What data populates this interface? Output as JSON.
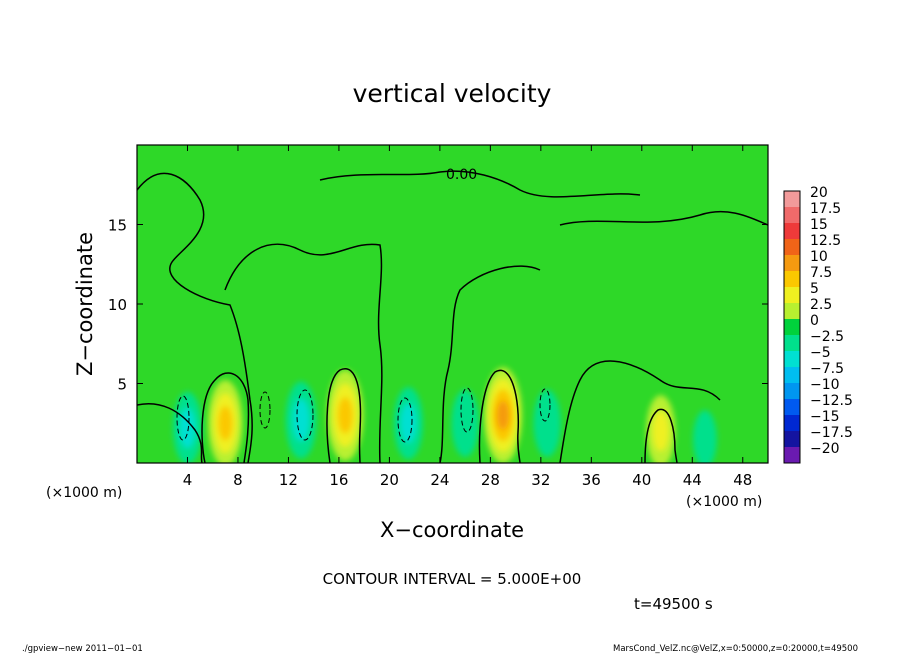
{
  "chart_data": {
    "type": "heatmap",
    "title": "vertical velocity",
    "xlabel": "X−coordinate",
    "ylabel": "Z−coordinate",
    "x_unit_left": "(×1000 m)",
    "x_unit_right": "(×1000 m)",
    "xlim": [
      0,
      50
    ],
    "ylim": [
      0,
      20
    ],
    "x_ticks": [
      4,
      8,
      12,
      16,
      20,
      24,
      28,
      32,
      36,
      40,
      44,
      48
    ],
    "y_ticks": [
      5,
      10,
      15
    ],
    "contour_label": "0.00",
    "contour_interval_text": "CONTOUR INTERVAL = 5.000E+00",
    "time_text": "t=49500 s",
    "colorbar": {
      "levels": [
        "20",
        "17.5",
        "15",
        "12.5",
        "10",
        "7.5",
        "5",
        "2.5",
        "0",
        "−2.5",
        "−5",
        "−7.5",
        "−10",
        "−12.5",
        "−15",
        "−17.5",
        "−20"
      ],
      "colors": [
        "#f29a9a",
        "#f06a6a",
        "#ee3a3a",
        "#f06418",
        "#f59a10",
        "#fbc800",
        "#eff020",
        "#b8f030",
        "#00d23c",
        "#00e08c",
        "#00e0d2",
        "#00bef0",
        "#0096f0",
        "#005af0",
        "#0028d2",
        "#1414a0",
        "#6a1ab0"
      ]
    },
    "features": [
      {
        "x": 7.0,
        "z": 2.5,
        "value": 8
      },
      {
        "x": 16.5,
        "z": 3.0,
        "value": 9
      },
      {
        "x": 29.0,
        "z": 3.0,
        "value": 10
      },
      {
        "x": 41.5,
        "z": 2.0,
        "value": 5
      },
      {
        "x": 4.0,
        "z": 2.2,
        "value": -5
      },
      {
        "x": 13.0,
        "z": 2.7,
        "value": -6
      },
      {
        "x": 21.5,
        "z": 2.5,
        "value": -5
      },
      {
        "x": 26.0,
        "z": 2.5,
        "value": -4
      },
      {
        "x": 32.5,
        "z": 2.5,
        "value": -4
      },
      {
        "x": 45.0,
        "z": 1.5,
        "value": -2
      }
    ]
  },
  "footer": {
    "left": "./gpview−new   2011−01−01",
    "right": "MarsCond_VelZ.nc@VelZ,x=0:50000,z=0:20000,t=49500"
  }
}
